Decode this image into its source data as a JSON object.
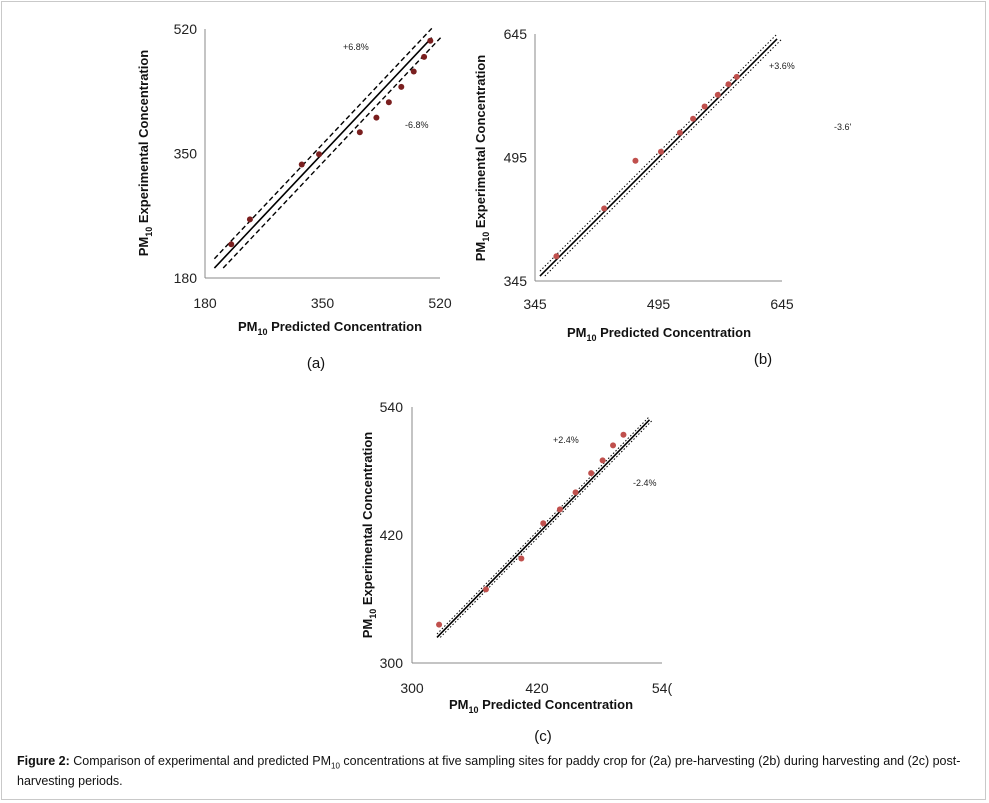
{
  "chart_data": [
    {
      "type": "scatter",
      "panel_label": "(a)",
      "xlabel": {
        "main": "PM",
        "sub": "10",
        "rest": " Predicted Concentration"
      },
      "ylabel": {
        "main": "PM",
        "sub": "10",
        "rest": " Experimental Concentration"
      },
      "xlim": [
        180,
        520
      ],
      "ylim": [
        180,
        520
      ],
      "xticks": [
        "180",
        "350",
        "520"
      ],
      "yticks": [
        "180",
        "350",
        "520"
      ],
      "band_labels": [
        "+6.8%",
        "-6.8%"
      ],
      "band_pct": 0.068,
      "band_style": "dashed",
      "point_color": "#7a1f1f",
      "points": [
        {
          "x": 218,
          "y": 226
        },
        {
          "x": 245,
          "y": 260
        },
        {
          "x": 320,
          "y": 335
        },
        {
          "x": 345,
          "y": 349
        },
        {
          "x": 404,
          "y": 379
        },
        {
          "x": 428,
          "y": 399
        },
        {
          "x": 446,
          "y": 420
        },
        {
          "x": 464,
          "y": 441
        },
        {
          "x": 482,
          "y": 462
        },
        {
          "x": 497,
          "y": 482
        },
        {
          "x": 506,
          "y": 504
        }
      ]
    },
    {
      "type": "scatter",
      "panel_label": "(b)",
      "xlabel": {
        "main": "PM",
        "sub": "10",
        "rest": " Predicted Concentration"
      },
      "ylabel": {
        "main": "PM",
        "sub": "10",
        "rest": " Experimental Concentration"
      },
      "xlim": [
        345,
        645
      ],
      "ylim": [
        345,
        645
      ],
      "xticks": [
        "345",
        "495",
        "645"
      ],
      "yticks": [
        "345",
        "495",
        "645"
      ],
      "band_labels": [
        "+3.6%",
        "-3.6'"
      ],
      "band_pct": 0.036,
      "band_style": "dotted",
      "point_color": "#c0504d",
      "points": [
        {
          "x": 371,
          "y": 375
        },
        {
          "x": 429,
          "y": 433
        },
        {
          "x": 467,
          "y": 491
        },
        {
          "x": 498,
          "y": 502
        },
        {
          "x": 521,
          "y": 525
        },
        {
          "x": 537,
          "y": 542
        },
        {
          "x": 551,
          "y": 557
        },
        {
          "x": 567,
          "y": 571
        },
        {
          "x": 580,
          "y": 584
        },
        {
          "x": 590,
          "y": 593
        }
      ]
    },
    {
      "type": "scatter",
      "panel_label": "(c)",
      "xlabel": {
        "main": "PM",
        "sub": "10",
        "rest": " Predicted Concentration"
      },
      "ylabel": {
        "main": "PM",
        "sub": "10",
        "rest": " Experimental Concentration"
      },
      "xlim": [
        300,
        540
      ],
      "ylim": [
        300,
        540
      ],
      "xticks": [
        "300",
        "420",
        "54("
      ],
      "yticks": [
        "300",
        "420",
        "540"
      ],
      "band_labels": [
        "+2.4%",
        "-2.4%"
      ],
      "band_pct": 0.024,
      "band_style": "dotted",
      "point_color": "#c0504d",
      "points": [
        {
          "x": 326,
          "y": 336
        },
        {
          "x": 371,
          "y": 369
        },
        {
          "x": 405,
          "y": 398
        },
        {
          "x": 426,
          "y": 431
        },
        {
          "x": 442,
          "y": 444
        },
        {
          "x": 457,
          "y": 460
        },
        {
          "x": 472,
          "y": 478
        },
        {
          "x": 483,
          "y": 490
        },
        {
          "x": 493,
          "y": 504
        },
        {
          "x": 503,
          "y": 514
        }
      ]
    }
  ],
  "caption": {
    "label": "Figure 2:",
    "text_before_sub": " Comparison of experimental and predicted PM",
    "sub": "10",
    "text_after_sub": " concentrations at five sampling sites for paddy crop for (2a) pre-harvesting (2b) during harvesting and (2c) post-harvesting periods."
  }
}
